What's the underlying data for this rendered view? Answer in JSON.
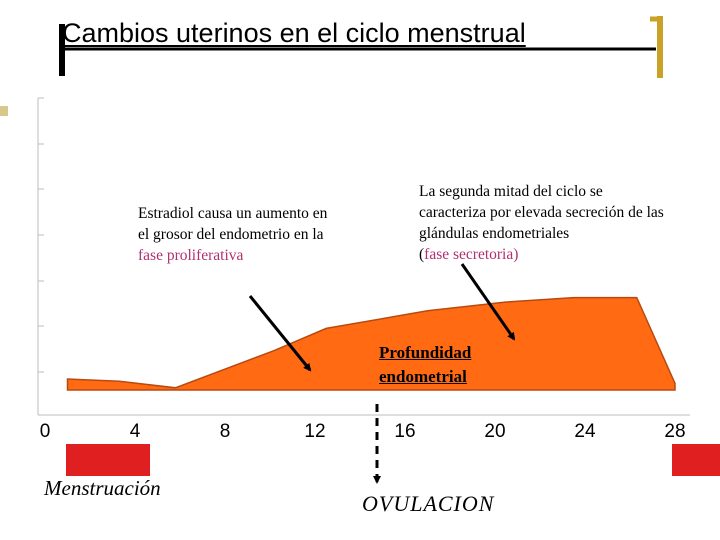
{
  "slide": {
    "title": "Cambios uterinos en el ciclo menstrual",
    "colors": {
      "curve_fill": "#ff6a13",
      "curve_stroke": "#b84a10",
      "menses_block": "#e02020",
      "accent_bracket": "#c9a227",
      "highlight_text": "#b03070"
    }
  },
  "annotations": {
    "proliferative": {
      "text": "Estradiol causa un aumento en el grosor del endometrio en la",
      "highlight": "fase proliferativa"
    },
    "secretory": {
      "text": "La segunda mitad del ciclo se caracteriza por elevada secreción de las glándulas endometriales",
      "open": "(",
      "highlight": "fase secretoria)"
    },
    "depth_label": "Profundidad endometrial",
    "menstruation_label": "Menstruación",
    "ovulation_label": "OVULACION"
  },
  "chart_data": {
    "type": "area",
    "title": "",
    "xlabel": "",
    "ylabel": "Profundidad endometrial",
    "x_ticks": [
      0,
      4,
      8,
      12,
      16,
      20,
      24,
      28
    ],
    "xlim": [
      0,
      28
    ],
    "ylim": [
      0,
      10
    ],
    "grid": false,
    "series": [
      {
        "x": [
          1,
          3.3,
          5.8,
          10.2,
          12.5,
          17,
          20.5,
          23.5,
          26.3,
          28
        ],
        "y": [
          0.5,
          0.4,
          0.1,
          1.8,
          2.8,
          3.6,
          4.0,
          4.2,
          4.2,
          0.3
        ]
      }
    ],
    "markers": [
      {
        "label": "Menstruación",
        "x_range": [
          0.7,
          4.5
        ]
      },
      {
        "label": "OVULACION",
        "x": 14
      },
      {
        "label": "Menstruación",
        "x_range": [
          27.8,
          29.5
        ]
      }
    ]
  }
}
